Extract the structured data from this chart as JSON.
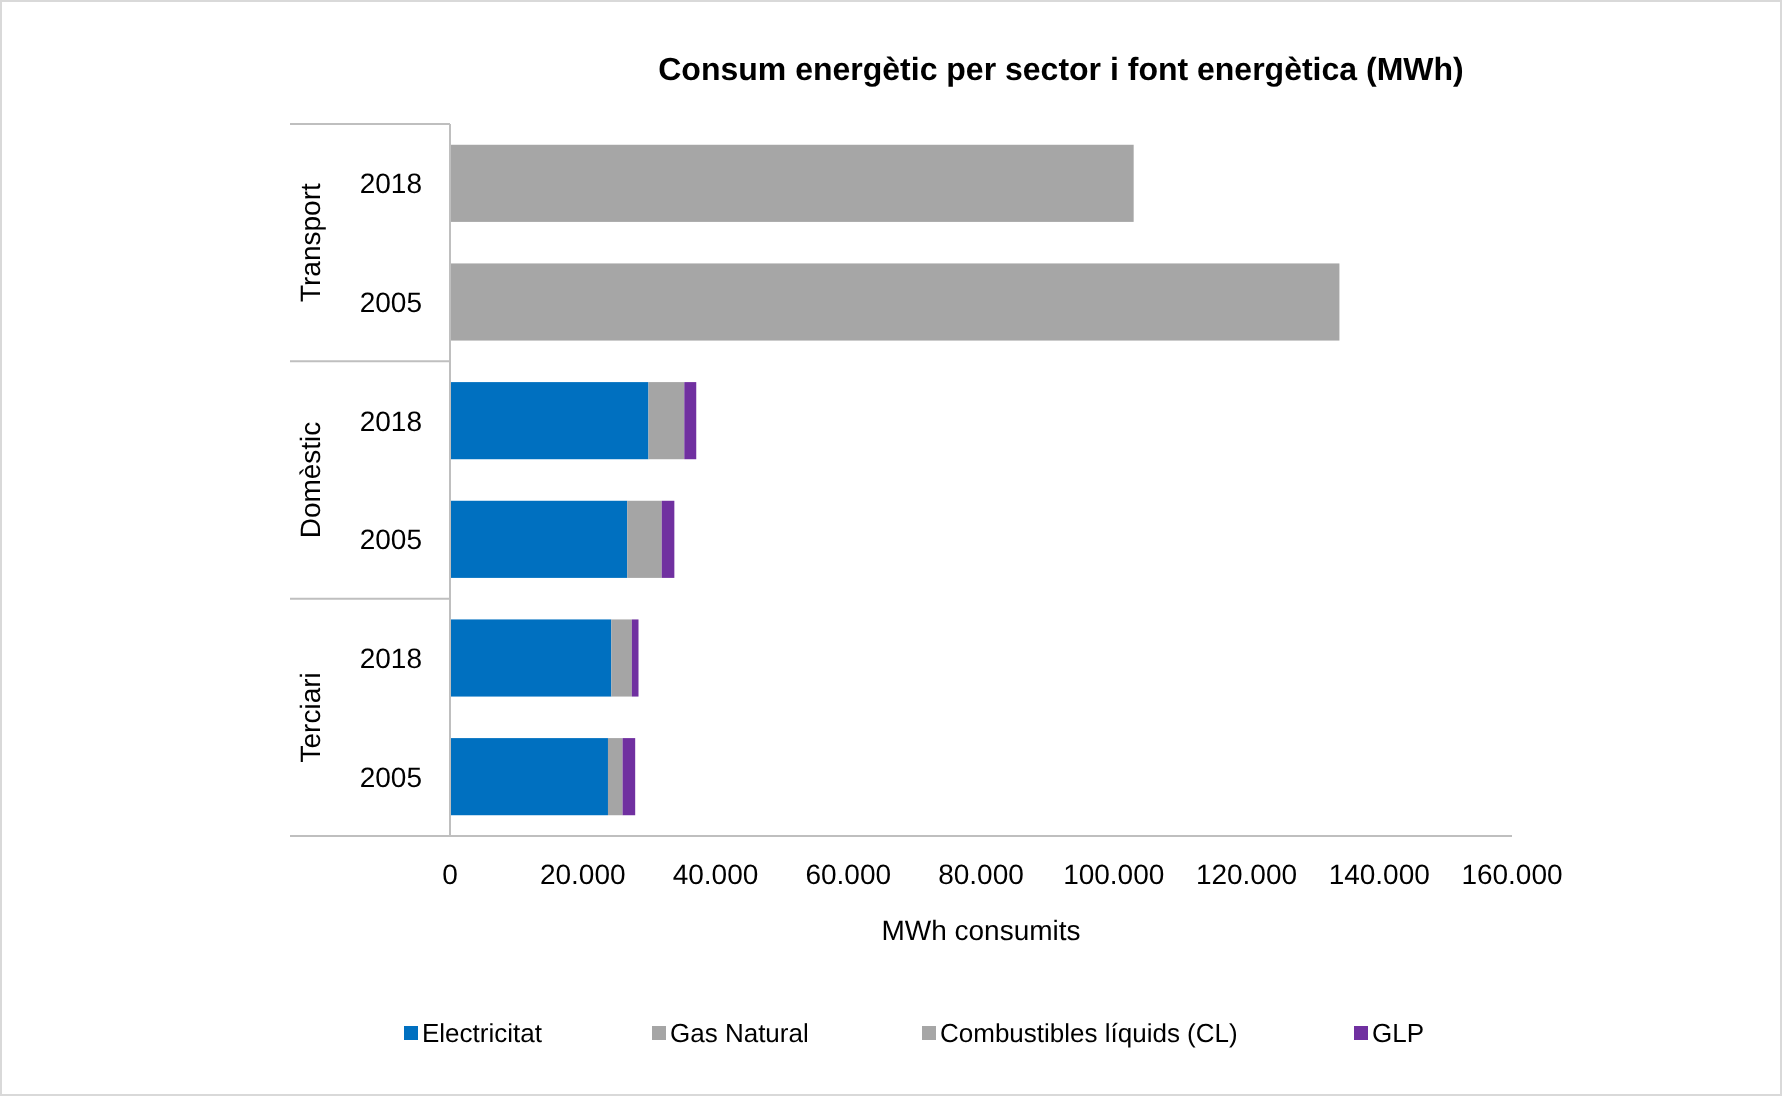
{
  "chart_data": {
    "type": "bar",
    "orientation": "horizontal",
    "stacked": true,
    "title": "Consum energètic per sector i font energètica (MWh)",
    "xlabel": "MWh consumits",
    "categories": [
      "2018",
      "2005",
      "2018",
      "2005",
      "2018",
      "2005"
    ],
    "annotations": [
      "Transport",
      "Domèstic",
      "Terciari"
    ],
    "series": [
      {
        "name": "Electricitat",
        "color": "#0070c0",
        "values": [
          0,
          0,
          29900,
          26700,
          24300,
          23800
        ]
      },
      {
        "name": "Gas Natural",
        "color": "#a5a5a5",
        "values": [
          0,
          0,
          5400,
          5200,
          3100,
          2200
        ]
      },
      {
        "name": "Combustibles líquids (CL)",
        "color": "#a6a6a6",
        "values": [
          103000,
          134000,
          0,
          0,
          0,
          0
        ]
      },
      {
        "name": "GLP",
        "color": "#7030a0",
        "values": [
          0,
          0,
          1800,
          1900,
          1000,
          1900
        ]
      }
    ],
    "xlim": [
      0,
      160000
    ],
    "xticks": [
      {
        "value": 0,
        "label": "0"
      },
      {
        "value": 20000,
        "label": "20.000"
      },
      {
        "value": 40000,
        "label": "40.000"
      },
      {
        "value": 60000,
        "label": "60.000"
      },
      {
        "value": 80000,
        "label": "80.000"
      },
      {
        "value": 100000,
        "label": "100.000"
      },
      {
        "value": 120000,
        "label": "120.000"
      },
      {
        "value": 140000,
        "label": "140.000"
      },
      {
        "value": 160000,
        "label": "160.000"
      }
    ],
    "grid": false,
    "legend": "bottom"
  }
}
